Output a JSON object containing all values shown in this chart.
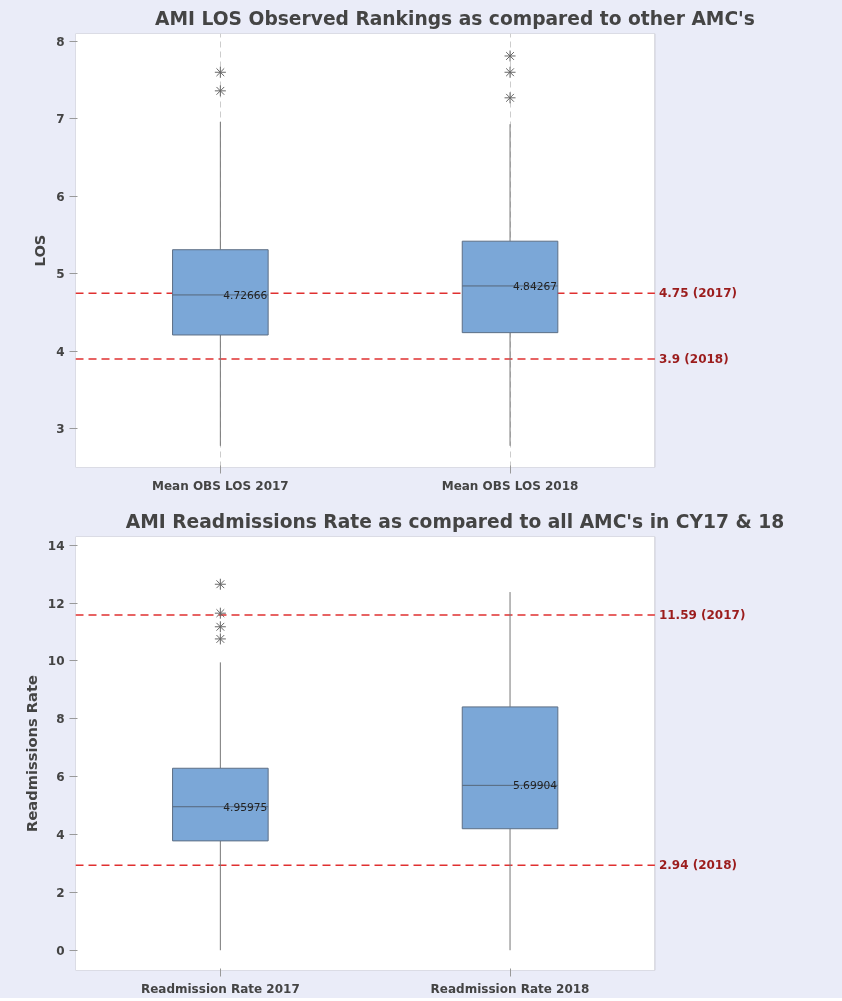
{
  "chart_data": [
    {
      "type": "box",
      "title": "AMI LOS Observed Rankings as compared to other AMC's",
      "ylabel": "LOS",
      "categories": [
        "Mean OBS LOS 2017",
        "Mean OBS LOS 2018"
      ],
      "series": [
        {
          "color": "#7ba7d7",
          "boxes": [
            {
              "low": 2.78,
              "q1": 4.21,
              "median": 4.72666,
              "q3": 5.31,
              "high": 6.96,
              "outliers": [
                7.6,
                7.36
              ]
            },
            {
              "low": 2.78,
              "q1": 4.24,
              "median": 4.84267,
              "q3": 5.42,
              "high": 6.93,
              "outliers": [
                7.81,
                7.6,
                7.27
              ]
            }
          ]
        }
      ],
      "ylim": [
        2.5,
        8.1
      ],
      "yticks": [
        3,
        4,
        5,
        6,
        7,
        8
      ],
      "grid": "x",
      "ref_lines": [
        {
          "axis": "y",
          "value": 4.75,
          "label": "4.75 (2017)",
          "color": "#e03030",
          "line_style": "dashed"
        },
        {
          "axis": "y",
          "value": 3.9,
          "label": "3.9 (2018)",
          "color": "#e03030",
          "line_style": "dashed"
        }
      ],
      "annotations": [
        {
          "text": "4.72666",
          "x": "Mean OBS LOS 2017",
          "y": 4.72666
        },
        {
          "text": "4.84267",
          "x": "Mean OBS LOS 2018",
          "y": 4.84267
        }
      ]
    },
    {
      "type": "box",
      "title": "AMI Readmissions Rate as compared to all AMC's in CY17 & 18",
      "ylabel": "Readmissions Rate",
      "categories": [
        "Readmission Rate 2017",
        "Readmission Rate 2018"
      ],
      "series": [
        {
          "color": "#7ba7d7",
          "boxes": [
            {
              "low": 0.0,
              "q1": 3.78,
              "median": 4.95975,
              "q3": 6.29,
              "high": 9.95,
              "outliers": [
                12.65,
                11.65,
                11.18,
                10.76
              ]
            },
            {
              "low": 0.0,
              "q1": 4.2,
              "median": 5.69904,
              "q3": 8.41,
              "high": 12.38
            }
          ]
        }
      ],
      "ylim": [
        -0.7,
        14.3
      ],
      "yticks": [
        0,
        2,
        4,
        6,
        8,
        10,
        12,
        14
      ],
      "grid": false,
      "ref_lines": [
        {
          "axis": "y",
          "value": 11.59,
          "label": "11.59 (2017)",
          "color": "#e03030",
          "line_style": "dashed"
        },
        {
          "axis": "y",
          "value": 2.94,
          "label": "2.94 (2018)",
          "color": "#e03030",
          "line_style": "dashed"
        }
      ],
      "annotations": [
        {
          "text": "4.95975",
          "x": "Readmission Rate 2017",
          "y": 4.95975
        },
        {
          "text": "5.69904",
          "x": "Readmission Rate 2018",
          "y": 5.69904
        }
      ]
    }
  ]
}
